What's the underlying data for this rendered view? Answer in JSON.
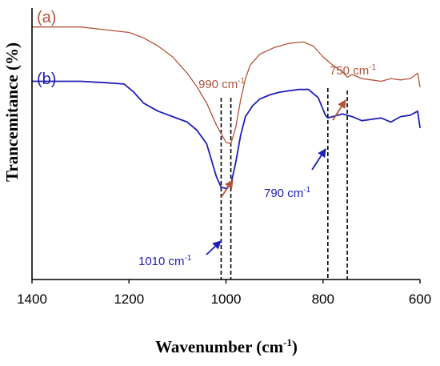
{
  "chart_data": {
    "type": "line",
    "title": "",
    "xlabel": "Wavenumber (cm",
    "xlabel_sup": "-1",
    "xlabel_close": ")",
    "ylabel": "Trancemitance (%)",
    "xlim": [
      1400,
      600
    ],
    "x_reversed": true,
    "xticks": [
      "1400",
      "1200",
      "1000",
      "800",
      "600"
    ],
    "grid": false,
    "series": [
      {
        "name": "(a)",
        "color": "#b5533a",
        "x": [
          1400,
          1350,
          1300,
          1250,
          1200,
          1170,
          1140,
          1110,
          1080,
          1060,
          1040,
          1020,
          1000,
          990,
          980,
          970,
          960,
          950,
          930,
          900,
          870,
          840,
          820,
          800,
          780,
          760,
          750,
          740,
          720,
          700,
          680,
          660,
          640,
          620,
          605,
          600
        ],
        "y": [
          0.93,
          0.93,
          0.93,
          0.92,
          0.91,
          0.89,
          0.86,
          0.82,
          0.76,
          0.71,
          0.65,
          0.57,
          0.505,
          0.5,
          0.56,
          0.66,
          0.74,
          0.79,
          0.83,
          0.855,
          0.87,
          0.875,
          0.86,
          0.82,
          0.79,
          0.765,
          0.745,
          0.755,
          0.74,
          0.735,
          0.73,
          0.74,
          0.735,
          0.74,
          0.76,
          0.71
        ]
      },
      {
        "name": "(b)",
        "color": "#1f1fb8",
        "x": [
          1400,
          1350,
          1300,
          1250,
          1210,
          1190,
          1170,
          1140,
          1110,
          1080,
          1060,
          1040,
          1030,
          1020,
          1010,
          1000,
          990,
          980,
          970,
          960,
          945,
          930,
          910,
          890,
          870,
          850,
          830,
          810,
          795,
          790,
          780,
          770,
          760,
          740,
          720,
          700,
          680,
          660,
          640,
          620,
          605,
          600
        ],
        "y": [
          0.73,
          0.73,
          0.73,
          0.725,
          0.72,
          0.69,
          0.65,
          0.62,
          0.6,
          0.58,
          0.55,
          0.5,
          0.44,
          0.38,
          0.34,
          0.335,
          0.35,
          0.43,
          0.53,
          0.6,
          0.64,
          0.665,
          0.68,
          0.69,
          0.695,
          0.7,
          0.7,
          0.67,
          0.605,
          0.595,
          0.6,
          0.605,
          0.61,
          0.6,
          0.585,
          0.59,
          0.595,
          0.58,
          0.6,
          0.605,
          0.62,
          0.56
        ]
      }
    ],
    "series_labels": [
      "(a)",
      "(b)"
    ],
    "reference_lines_x": [
      1010,
      990,
      790,
      750
    ],
    "annotations": [
      {
        "text": "990 cm",
        "sup": "-1",
        "color": "#b5533a",
        "target_x": 990
      },
      {
        "text": "750 cm",
        "sup": "-1",
        "color": "#b5533a",
        "target_x": 750
      },
      {
        "text": "790 cm",
        "sup": "-1",
        "color": "#1f1fb8",
        "target_x": 790
      },
      {
        "text": "1010 cm",
        "sup": "-1",
        "color": "#1f1fb8",
        "target_x": 1010
      }
    ]
  }
}
